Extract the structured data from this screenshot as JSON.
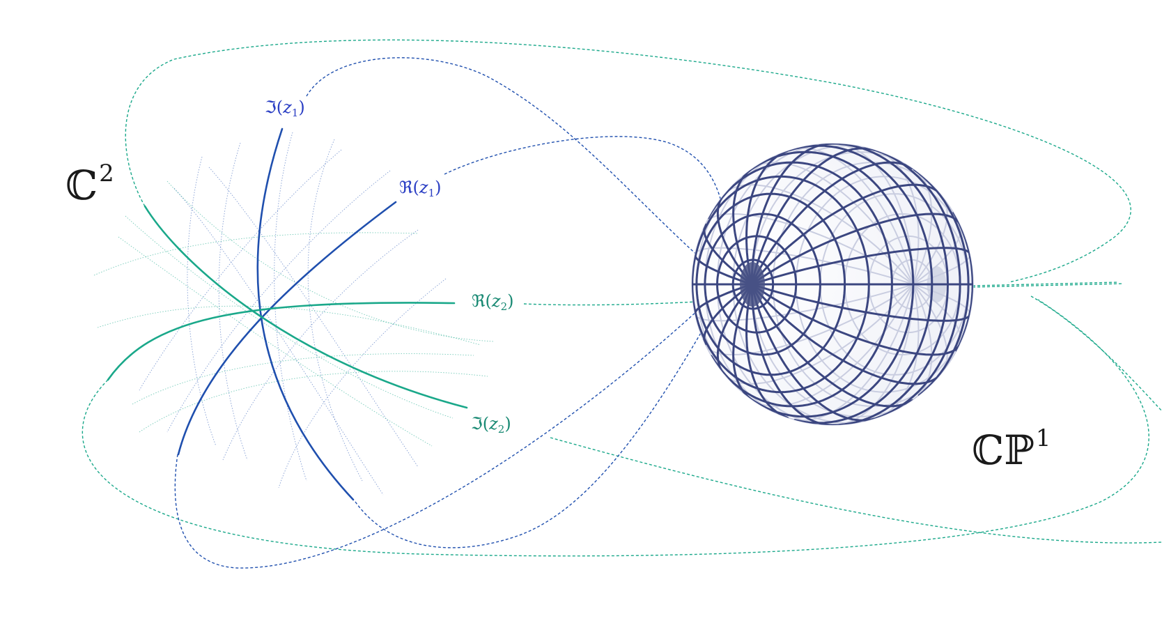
{
  "colors": {
    "blue": "#1f4fae",
    "green": "#1aa88a",
    "sphere_line": "#3b4680",
    "sphere_back": "#c9cde0",
    "label_blue": "#2b3fc4",
    "label_green": "#1a8a74"
  },
  "spaces": {
    "c2": {
      "base": "ℂ",
      "exp": "2"
    },
    "cp1": {
      "base": "ℂℙ",
      "exp": "1"
    }
  },
  "axes": {
    "im_z1": {
      "op": "ℑ",
      "var": "z",
      "sub": "1"
    },
    "re_z1": {
      "op": "ℜ",
      "var": "z",
      "sub": "1"
    },
    "re_z2": {
      "op": "ℜ",
      "var": "z",
      "sub": "2"
    },
    "im_z2": {
      "op": "ℑ",
      "var": "z",
      "sub": "2"
    }
  }
}
